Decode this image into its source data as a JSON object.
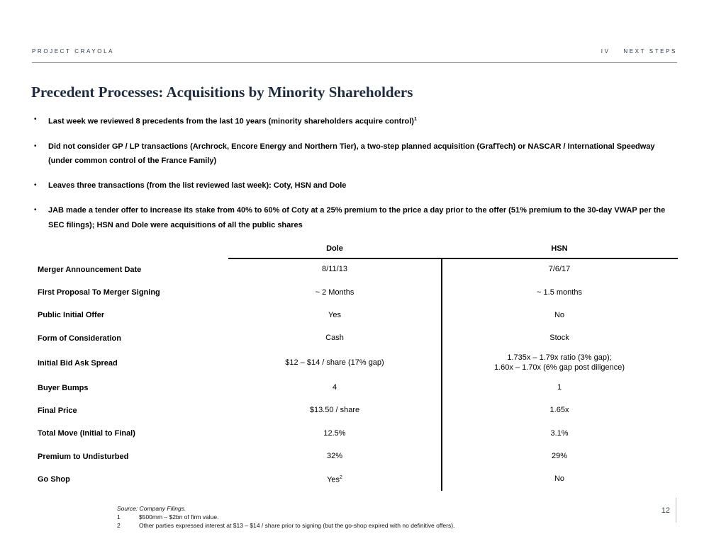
{
  "header": {
    "project_name": "PROJECT CRAYOLA",
    "section_number": "IV",
    "section_title": "NEXT STEPS"
  },
  "title": "Precedent Processes: Acquisitions by Minority Shareholders",
  "bullet_glyph": "•",
  "bullets": [
    {
      "text": "Last week we reviewed 8 precedents from the last 10 years (minority shareholders acquire control)",
      "sup": "1"
    },
    {
      "text": "Did not consider GP / LP transactions (Archrock, Encore Energy and Northern Tier), a two-step planned acquisition (GrafTech) or NASCAR / International Speedway (under common control of the France Family)"
    },
    {
      "text": "Leaves three transactions (from the list reviewed last week): Coty, HSN and Dole"
    },
    {
      "text": "JAB made a tender offer to increase its stake from 40% to 60% of Coty at a 25% premium to the price a day prior to the offer (51% premium to the 30-day VWAP per the SEC filings); HSN and Dole were acquisitions of all the public shares"
    }
  ],
  "table": {
    "columns": [
      "Dole",
      "HSN"
    ],
    "rows": [
      {
        "label": "Merger Announcement Date",
        "dole": "8/11/13",
        "hsn": "7/6/17"
      },
      {
        "label": "First Proposal To Merger Signing",
        "dole": "~ 2 Months",
        "hsn": "~ 1.5 months"
      },
      {
        "label": "Public Initial Offer",
        "dole": "Yes",
        "hsn": "No"
      },
      {
        "label": "Form of Consideration",
        "dole": "Cash",
        "hsn": "Stock"
      },
      {
        "label": "Initial Bid Ask Spread",
        "dole": "$12 – $14 / share (17% gap)",
        "hsn": "1.735x – 1.79x ratio (3% gap);\n1.60x – 1.70x (6% gap post diligence)"
      },
      {
        "label": "Buyer Bumps",
        "dole": "4",
        "hsn": "1"
      },
      {
        "label": "Final Price",
        "dole": "$13.50 / share",
        "hsn": "1.65x"
      },
      {
        "label": "Total Move (Initial to Final)",
        "dole": "12.5%",
        "hsn": "3.1%"
      },
      {
        "label": "Premium to Undisturbed",
        "dole": "32%",
        "hsn": "29%"
      },
      {
        "label": "Go Shop",
        "dole": "Yes",
        "dole_sup": "2",
        "hsn": "No"
      }
    ]
  },
  "footer": {
    "source": "Source: Company Filings.",
    "footnotes": [
      {
        "num": "1",
        "text": "$500mm – $2bn of firm value."
      },
      {
        "num": "2",
        "text": "Other parties expressed interest at $13 – $14 / share prior to signing (but the go-shop expired with no definitive offers)."
      }
    ],
    "page_number": "12"
  }
}
